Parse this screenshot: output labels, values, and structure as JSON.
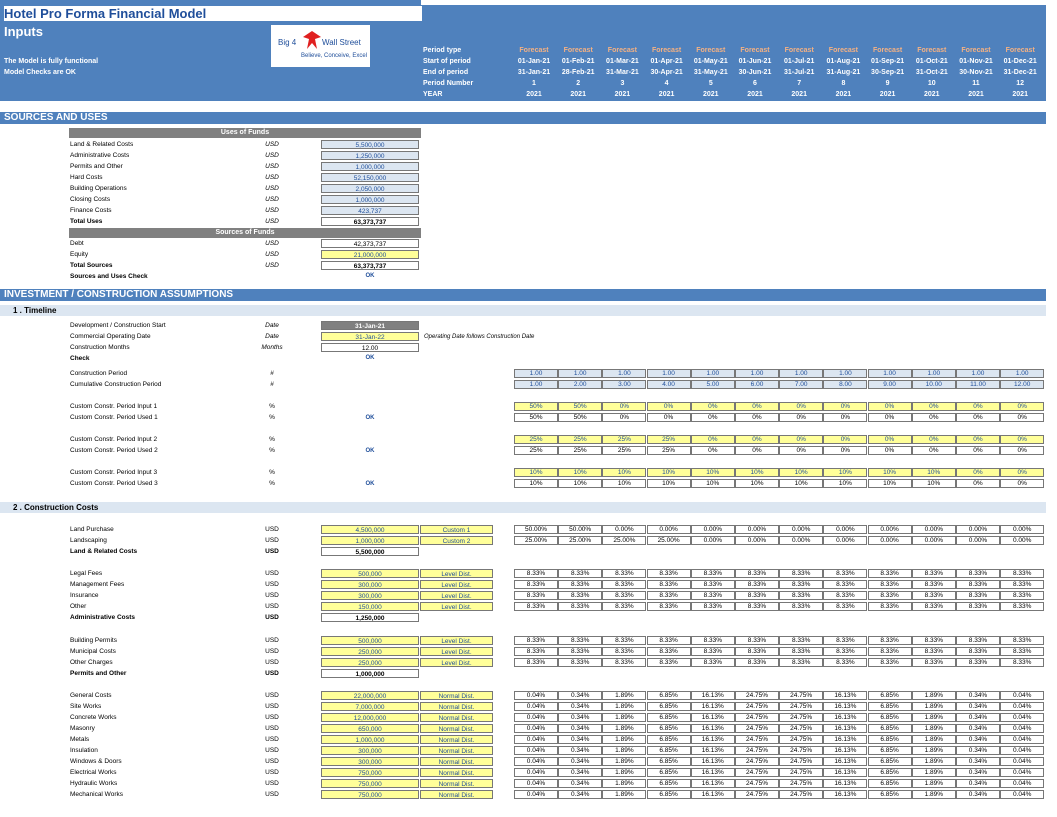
{
  "header": {
    "title": "Hotel Pro Forma Financial Model",
    "subtitle": "Inputs",
    "status1": "The Model is fully functional",
    "status2": "Model Checks are OK",
    "logo": {
      "left": "Big 4",
      "right": "Wall Street",
      "tagline": "Believe, Conceive, Excel"
    },
    "row_labels": [
      "Period type",
      "Start of period",
      "End of period",
      "Period Number",
      "YEAR"
    ],
    "periods": [
      {
        "type": "Forecast",
        "start": "01-Jan-21",
        "end": "31-Jan-21",
        "num": "1",
        "year": "2021"
      },
      {
        "type": "Forecast",
        "start": "01-Feb-21",
        "end": "28-Feb-21",
        "num": "2",
        "year": "2021"
      },
      {
        "type": "Forecast",
        "start": "01-Mar-21",
        "end": "31-Mar-21",
        "num": "3",
        "year": "2021"
      },
      {
        "type": "Forecast",
        "start": "01-Apr-21",
        "end": "30-Apr-21",
        "num": "4",
        "year": "2021"
      },
      {
        "type": "Forecast",
        "start": "01-May-21",
        "end": "31-May-21",
        "num": "5",
        "year": "2021"
      },
      {
        "type": "Forecast",
        "start": "01-Jun-21",
        "end": "30-Jun-21",
        "num": "6",
        "year": "2021"
      },
      {
        "type": "Forecast",
        "start": "01-Jul-21",
        "end": "31-Jul-21",
        "num": "7",
        "year": "2021"
      },
      {
        "type": "Forecast",
        "start": "01-Aug-21",
        "end": "31-Aug-21",
        "num": "8",
        "year": "2021"
      },
      {
        "type": "Forecast",
        "start": "01-Sep-21",
        "end": "30-Sep-21",
        "num": "9",
        "year": "2021"
      },
      {
        "type": "Forecast",
        "start": "01-Oct-21",
        "end": "31-Oct-21",
        "num": "10",
        "year": "2021"
      },
      {
        "type": "Forecast",
        "start": "01-Nov-21",
        "end": "30-Nov-21",
        "num": "11",
        "year": "2021"
      },
      {
        "type": "Forecast",
        "start": "01-Dec-21",
        "end": "31-Dec-21",
        "num": "12",
        "year": "2021"
      }
    ]
  },
  "sections": {
    "sources_uses": "SOURCES AND USES",
    "investment": "INVESTMENT / CONSTRUCTION ASSUMPTIONS",
    "timeline": "1 . Timeline",
    "construction_costs": "2 . Construction Costs"
  },
  "uses": {
    "header": "Uses of Funds",
    "rows": [
      {
        "label": "Land & Related Costs",
        "unit": "USD",
        "value": "5,500,000"
      },
      {
        "label": "Administrative Costs",
        "unit": "USD",
        "value": "1,250,000"
      },
      {
        "label": "Permits and Other",
        "unit": "USD",
        "value": "1,000,000"
      },
      {
        "label": "Hard Costs",
        "unit": "USD",
        "value": "52,150,000"
      },
      {
        "label": "Building Operations",
        "unit": "USD",
        "value": "2,050,000"
      },
      {
        "label": "Closing Costs",
        "unit": "USD",
        "value": "1,000,000"
      },
      {
        "label": "Finance Costs",
        "unit": "USD",
        "value": "423,737"
      }
    ],
    "total": {
      "label": "Total Uses",
      "unit": "USD",
      "value": "63,373,737"
    }
  },
  "sources": {
    "header": "Sources of Funds",
    "rows": [
      {
        "label": "Debt",
        "unit": "USD",
        "value": "42,373,737"
      },
      {
        "label": "Equity",
        "unit": "USD",
        "value": "21,000,000"
      }
    ],
    "total": {
      "label": "Total Sources",
      "unit": "USD",
      "value": "63,373,737"
    },
    "check": {
      "label": "Sources and Uses Check",
      "value": "OK"
    }
  },
  "timeline": {
    "rows": [
      {
        "label": "Development / Construction Start",
        "unit": "Date",
        "value": "31-Jan-21"
      },
      {
        "label": "Commercial Operating Date",
        "unit": "Date",
        "value": "31-Jan-22"
      },
      {
        "label": "Construction Months",
        "unit": "Months",
        "value": "12.00"
      }
    ],
    "note": "Operating Date follows Construction Date",
    "check": {
      "label": "Check",
      "value": "OK"
    },
    "construction_period": {
      "label": "Construction Period",
      "unit": "#",
      "values": [
        "1.00",
        "1.00",
        "1.00",
        "1.00",
        "1.00",
        "1.00",
        "1.00",
        "1.00",
        "1.00",
        "1.00",
        "1.00",
        "1.00"
      ]
    },
    "cumulative_period": {
      "label": "Cumulative Construction Period",
      "unit": "#",
      "values": [
        "1.00",
        "2.00",
        "3.00",
        "4.00",
        "5.00",
        "6.00",
        "7.00",
        "8.00",
        "9.00",
        "10.00",
        "11.00",
        "12.00"
      ]
    },
    "custom": [
      {
        "input_label": "Custom Constr. Period Input 1",
        "used_label": "Custom Constr. Period Used 1",
        "unit": "%",
        "ok": "OK",
        "input": [
          "50%",
          "50%",
          "0%",
          "0%",
          "0%",
          "0%",
          "0%",
          "0%",
          "0%",
          "0%",
          "0%",
          "0%"
        ],
        "used": [
          "50%",
          "50%",
          "0%",
          "0%",
          "0%",
          "0%",
          "0%",
          "0%",
          "0%",
          "0%",
          "0%",
          "0%"
        ]
      },
      {
        "input_label": "Custom Constr. Period Input 2",
        "used_label": "Custom Constr. Period Used 2",
        "unit": "%",
        "ok": "OK",
        "input": [
          "25%",
          "25%",
          "25%",
          "25%",
          "0%",
          "0%",
          "0%",
          "0%",
          "0%",
          "0%",
          "0%",
          "0%"
        ],
        "used": [
          "25%",
          "25%",
          "25%",
          "25%",
          "0%",
          "0%",
          "0%",
          "0%",
          "0%",
          "0%",
          "0%",
          "0%"
        ]
      },
      {
        "input_label": "Custom Constr. Period Input 3",
        "used_label": "Custom Constr. Period Used 3",
        "unit": "%",
        "ok": "OK",
        "input": [
          "10%",
          "10%",
          "10%",
          "10%",
          "10%",
          "10%",
          "10%",
          "10%",
          "10%",
          "10%",
          "0%",
          "0%"
        ],
        "used": [
          "10%",
          "10%",
          "10%",
          "10%",
          "10%",
          "10%",
          "10%",
          "10%",
          "10%",
          "10%",
          "0%",
          "0%"
        ]
      }
    ]
  },
  "costs": {
    "groups": [
      {
        "rows": [
          {
            "label": "Land Purchase",
            "unit": "USD",
            "value": "4,500,000",
            "dist": "Custom 1",
            "pct": [
              "50.00%",
              "50.00%",
              "0.00%",
              "0.00%",
              "0.00%",
              "0.00%",
              "0.00%",
              "0.00%",
              "0.00%",
              "0.00%",
              "0.00%",
              "0.00%"
            ]
          },
          {
            "label": "Landscaping",
            "unit": "USD",
            "value": "1,000,000",
            "dist": "Custom 2",
            "pct": [
              "25.00%",
              "25.00%",
              "25.00%",
              "25.00%",
              "0.00%",
              "0.00%",
              "0.00%",
              "0.00%",
              "0.00%",
              "0.00%",
              "0.00%",
              "0.00%"
            ]
          }
        ],
        "total": {
          "label": "Land & Related Costs",
          "unit": "USD",
          "value": "5,500,000"
        }
      },
      {
        "rows": [
          {
            "label": "Legal Fees",
            "unit": "USD",
            "value": "500,000",
            "dist": "Level Dist.",
            "pct": [
              "8.33%",
              "8.33%",
              "8.33%",
              "8.33%",
              "8.33%",
              "8.33%",
              "8.33%",
              "8.33%",
              "8.33%",
              "8.33%",
              "8.33%",
              "8.33%"
            ]
          },
          {
            "label": "Management Fees",
            "unit": "USD",
            "value": "300,000",
            "dist": "Level Dist.",
            "pct": [
              "8.33%",
              "8.33%",
              "8.33%",
              "8.33%",
              "8.33%",
              "8.33%",
              "8.33%",
              "8.33%",
              "8.33%",
              "8.33%",
              "8.33%",
              "8.33%"
            ]
          },
          {
            "label": "Insurance",
            "unit": "USD",
            "value": "300,000",
            "dist": "Level Dist.",
            "pct": [
              "8.33%",
              "8.33%",
              "8.33%",
              "8.33%",
              "8.33%",
              "8.33%",
              "8.33%",
              "8.33%",
              "8.33%",
              "8.33%",
              "8.33%",
              "8.33%"
            ]
          },
          {
            "label": "Other",
            "unit": "USD",
            "value": "150,000",
            "dist": "Level Dist.",
            "pct": [
              "8.33%",
              "8.33%",
              "8.33%",
              "8.33%",
              "8.33%",
              "8.33%",
              "8.33%",
              "8.33%",
              "8.33%",
              "8.33%",
              "8.33%",
              "8.33%"
            ]
          }
        ],
        "total": {
          "label": "Administrative Costs",
          "unit": "USD",
          "value": "1,250,000"
        }
      },
      {
        "rows": [
          {
            "label": "Building Permits",
            "unit": "USD",
            "value": "500,000",
            "dist": "Level Dist.",
            "pct": [
              "8.33%",
              "8.33%",
              "8.33%",
              "8.33%",
              "8.33%",
              "8.33%",
              "8.33%",
              "8.33%",
              "8.33%",
              "8.33%",
              "8.33%",
              "8.33%"
            ]
          },
          {
            "label": "Municipal Costs",
            "unit": "USD",
            "value": "250,000",
            "dist": "Level Dist.",
            "pct": [
              "8.33%",
              "8.33%",
              "8.33%",
              "8.33%",
              "8.33%",
              "8.33%",
              "8.33%",
              "8.33%",
              "8.33%",
              "8.33%",
              "8.33%",
              "8.33%"
            ]
          },
          {
            "label": "Other Charges",
            "unit": "USD",
            "value": "250,000",
            "dist": "Level Dist.",
            "pct": [
              "8.33%",
              "8.33%",
              "8.33%",
              "8.33%",
              "8.33%",
              "8.33%",
              "8.33%",
              "8.33%",
              "8.33%",
              "8.33%",
              "8.33%",
              "8.33%"
            ]
          }
        ],
        "total": {
          "label": "Permits and Other",
          "unit": "USD",
          "value": "1,000,000"
        }
      },
      {
        "rows": [
          {
            "label": "General Costs",
            "unit": "USD",
            "value": "22,000,000",
            "dist": "Normal Dist.",
            "pct": [
              "0.04%",
              "0.34%",
              "1.89%",
              "6.85%",
              "16.13%",
              "24.75%",
              "24.75%",
              "16.13%",
              "6.85%",
              "1.89%",
              "0.34%",
              "0.04%"
            ]
          },
          {
            "label": "Site Works",
            "unit": "USD",
            "value": "7,000,000",
            "dist": "Normal Dist.",
            "pct": [
              "0.04%",
              "0.34%",
              "1.89%",
              "6.85%",
              "16.13%",
              "24.75%",
              "24.75%",
              "16.13%",
              "6.85%",
              "1.89%",
              "0.34%",
              "0.04%"
            ]
          },
          {
            "label": "Concrete Works",
            "unit": "USD",
            "value": "12,000,000",
            "dist": "Normal Dist.",
            "pct": [
              "0.04%",
              "0.34%",
              "1.89%",
              "6.85%",
              "16.13%",
              "24.75%",
              "24.75%",
              "16.13%",
              "6.85%",
              "1.89%",
              "0.34%",
              "0.04%"
            ]
          },
          {
            "label": "Masonry",
            "unit": "USD",
            "value": "650,000",
            "dist": "Normal Dist.",
            "pct": [
              "0.04%",
              "0.34%",
              "1.89%",
              "6.85%",
              "16.13%",
              "24.75%",
              "24.75%",
              "16.13%",
              "6.85%",
              "1.89%",
              "0.34%",
              "0.04%"
            ]
          },
          {
            "label": "Metals",
            "unit": "USD",
            "value": "1,000,000",
            "dist": "Normal Dist.",
            "pct": [
              "0.04%",
              "0.34%",
              "1.89%",
              "6.85%",
              "16.13%",
              "24.75%",
              "24.75%",
              "16.13%",
              "6.85%",
              "1.89%",
              "0.34%",
              "0.04%"
            ]
          },
          {
            "label": "Insulation",
            "unit": "USD",
            "value": "300,000",
            "dist": "Normal Dist.",
            "pct": [
              "0.04%",
              "0.34%",
              "1.89%",
              "6.85%",
              "16.13%",
              "24.75%",
              "24.75%",
              "16.13%",
              "6.85%",
              "1.89%",
              "0.34%",
              "0.04%"
            ]
          },
          {
            "label": "Windows & Doors",
            "unit": "USD",
            "value": "300,000",
            "dist": "Normal Dist.",
            "pct": [
              "0.04%",
              "0.34%",
              "1.89%",
              "6.85%",
              "16.13%",
              "24.75%",
              "24.75%",
              "16.13%",
              "6.85%",
              "1.89%",
              "0.34%",
              "0.04%"
            ]
          },
          {
            "label": "Electrical Works",
            "unit": "USD",
            "value": "750,000",
            "dist": "Normal Dist.",
            "pct": [
              "0.04%",
              "0.34%",
              "1.89%",
              "6.85%",
              "16.13%",
              "24.75%",
              "24.75%",
              "16.13%",
              "6.85%",
              "1.89%",
              "0.34%",
              "0.04%"
            ]
          },
          {
            "label": "Hydraulic Works",
            "unit": "USD",
            "value": "750,000",
            "dist": "Normal Dist.",
            "pct": [
              "0.04%",
              "0.34%",
              "1.89%",
              "6.85%",
              "16.13%",
              "24.75%",
              "24.75%",
              "16.13%",
              "6.85%",
              "1.89%",
              "0.34%",
              "0.04%"
            ]
          },
          {
            "label": "Mechanical Works",
            "unit": "USD",
            "value": "750,000",
            "dist": "Normal Dist.",
            "pct": [
              "0.04%",
              "0.34%",
              "1.89%",
              "6.85%",
              "16.13%",
              "24.75%",
              "24.75%",
              "16.13%",
              "6.85%",
              "1.89%",
              "0.34%",
              "0.04%"
            ]
          }
        ],
        "total": null
      }
    ]
  },
  "colors": {
    "header_blue": "#4f81bd",
    "input_yellow": "#ffff99",
    "calc_blue": "#dce6f1",
    "forecast_orange": "#f4b183"
  }
}
